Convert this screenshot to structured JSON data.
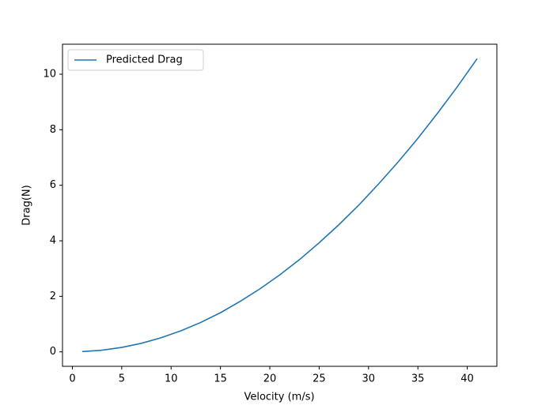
{
  "chart_data": {
    "type": "line",
    "xlabel": "Velocity (m/s)",
    "ylabel": "Drag(N)",
    "x": [
      1,
      3,
      5,
      7,
      9,
      11,
      13,
      15,
      17,
      19,
      21,
      23,
      25,
      27,
      29,
      31,
      33,
      35,
      37,
      39,
      41
    ],
    "series": [
      {
        "name": "Predicted Drag",
        "color": "#1f77b4",
        "values": [
          0.01,
          0.06,
          0.16,
          0.31,
          0.51,
          0.76,
          1.06,
          1.41,
          1.82,
          2.27,
          2.77,
          3.32,
          3.93,
          4.58,
          5.28,
          6.04,
          6.84,
          7.69,
          8.6,
          9.55,
          10.56
        ]
      }
    ],
    "xlim": [
      -1,
      43
    ],
    "ylim": [
      -0.52,
      11.08
    ],
    "xticks": [
      0,
      5,
      10,
      15,
      20,
      25,
      30,
      35,
      40
    ],
    "yticks": [
      0,
      2,
      4,
      6,
      8,
      10
    ],
    "legend": "upper left"
  }
}
